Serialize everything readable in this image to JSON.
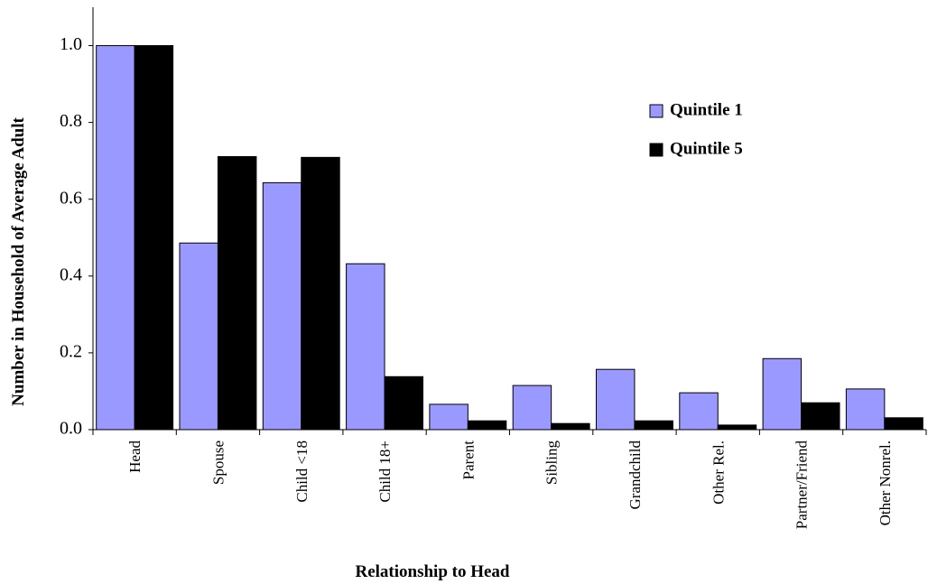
{
  "chart_data": {
    "type": "bar",
    "x_label": "Relationship to Head",
    "y_label": "Number in Household of Average Adult",
    "categories": [
      "Head",
      "Spouse",
      "Child <18",
      "Child 18+",
      "Parent",
      "Sibling",
      "Grandchild",
      "Other Rel.",
      "Partner/Friend",
      "Other Nonrel."
    ],
    "series": [
      {
        "name": "Quintile 1",
        "color": "#9999ff",
        "values": [
          1.0,
          0.486,
          0.643,
          0.432,
          0.066,
          0.115,
          0.157,
          0.096,
          0.185,
          0.106
        ]
      },
      {
        "name": "Quintile 5",
        "color": "#000000",
        "values": [
          1.0,
          0.711,
          0.709,
          0.138,
          0.023,
          0.016,
          0.023,
          0.012,
          0.07,
          0.031
        ]
      }
    ],
    "ylim": [
      0,
      1.1
    ],
    "yticks": [
      {
        "value": 0,
        "label": "0.0"
      },
      0.2,
      0.4,
      0.6,
      0.8,
      {
        "value": 1,
        "label": "1.0"
      }
    ],
    "legend": "upper right",
    "grid": false
  }
}
